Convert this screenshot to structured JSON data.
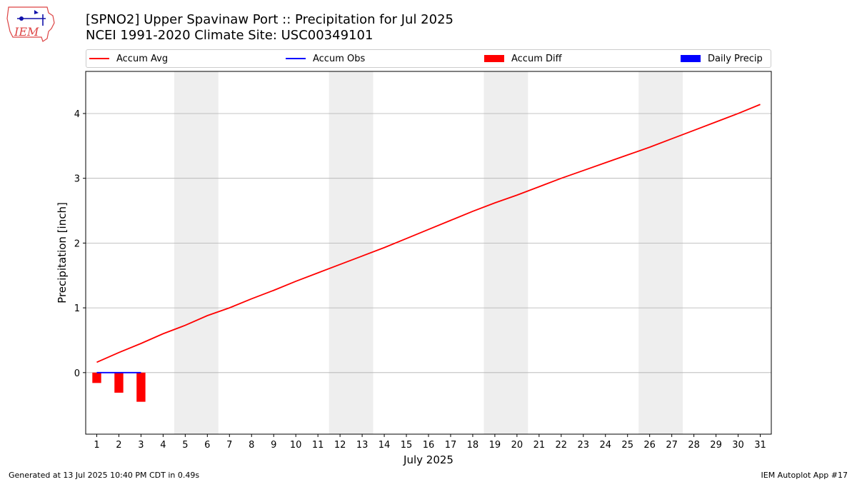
{
  "title": "[SPNO2] Upper Spavinaw Port :: Precipitation for Jul 2025",
  "subtitle": "NCEI 1991-2020 Climate Site: USC00349101",
  "logo_text": "IEM",
  "footer_left": "Generated at 13 Jul 2025 10:40 PM CDT in 0.49s",
  "footer_right": "IEM Autoplot App #17",
  "colors": {
    "accum_avg": "#ff0000",
    "accum_obs": "#0000ff",
    "accum_diff": "#ff0000",
    "daily_precip": "#0000ff",
    "weekend_shade": "#eeeeee",
    "grid": "#b0b0b0"
  },
  "chart_data": {
    "type": "line",
    "xlabel": "July 2025",
    "ylabel": "Precipitation [inch]",
    "xlim": [
      0.5,
      31.5
    ],
    "ylim": [
      -0.95,
      4.65
    ],
    "x_ticks": [
      "1",
      "2",
      "3",
      "4",
      "5",
      "6",
      "7",
      "8",
      "9",
      "10",
      "11",
      "12",
      "13",
      "14",
      "15",
      "16",
      "17",
      "18",
      "19",
      "20",
      "21",
      "22",
      "23",
      "24",
      "25",
      "26",
      "27",
      "28",
      "29",
      "30",
      "31"
    ],
    "y_ticks": [
      "0",
      "1",
      "2",
      "3",
      "4"
    ],
    "grid": "y",
    "legend_position": "top",
    "weekend_shading": [
      [
        4.5,
        6.5
      ],
      [
        11.5,
        13.5
      ],
      [
        18.5,
        20.5
      ],
      [
        25.5,
        27.5
      ]
    ],
    "legend": [
      "Accum Avg",
      "Accum Obs",
      "Accum Diff",
      "Daily Precip"
    ],
    "series": [
      {
        "name": "Accum Avg",
        "kind": "line",
        "x": [
          1,
          2,
          3,
          4,
          5,
          6,
          7,
          8,
          9,
          10,
          11,
          12,
          13,
          14,
          15,
          16,
          17,
          18,
          19,
          20,
          21,
          22,
          23,
          24,
          25,
          26,
          27,
          28,
          29,
          30,
          31
        ],
        "values": [
          0.16,
          0.31,
          0.45,
          0.6,
          0.73,
          0.88,
          1.0,
          1.14,
          1.27,
          1.41,
          1.54,
          1.67,
          1.8,
          1.93,
          2.07,
          2.21,
          2.35,
          2.49,
          2.62,
          2.74,
          2.87,
          3.0,
          3.12,
          3.24,
          3.36,
          3.48,
          3.61,
          3.74,
          3.87,
          4.0,
          4.14
        ]
      },
      {
        "name": "Accum Obs",
        "kind": "line",
        "x": [
          1,
          2,
          3
        ],
        "values": [
          0.0,
          0.0,
          0.0
        ]
      },
      {
        "name": "Accum Diff",
        "kind": "bar",
        "x": [
          1,
          2,
          3
        ],
        "values": [
          -0.16,
          -0.31,
          -0.45
        ]
      },
      {
        "name": "Daily Precip",
        "kind": "bar",
        "x": [
          1,
          2,
          3
        ],
        "values": [
          0.0,
          0.0,
          0.0
        ]
      }
    ]
  }
}
